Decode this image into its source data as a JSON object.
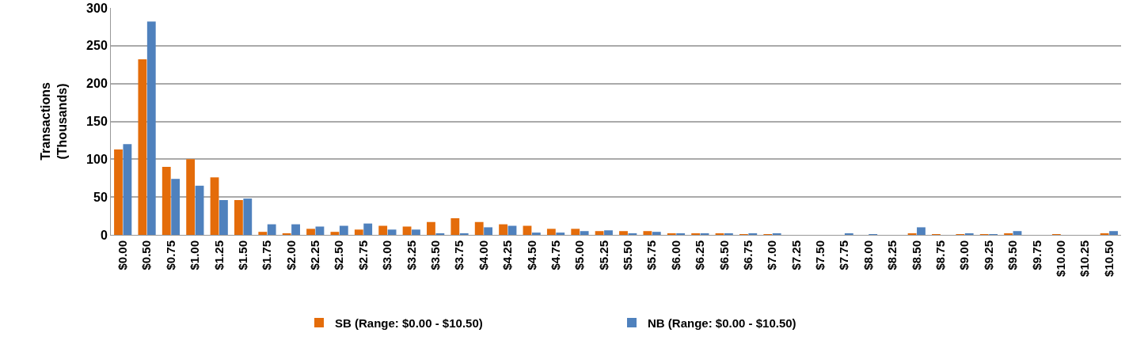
{
  "chart_data": {
    "type": "bar",
    "ylabel": "Transactions\n(Thousands)",
    "categories": [
      "$0.00",
      "$0.50",
      "$0.75",
      "$1.00",
      "$1.25",
      "$1.50",
      "$1.75",
      "$2.00",
      "$2.25",
      "$2.50",
      "$2.75",
      "$3.00",
      "$3.25",
      "$3.50",
      "$3.75",
      "$4.00",
      "$4.25",
      "$4.50",
      "$4.75",
      "$5.00",
      "$5.25",
      "$5.50",
      "$5.75",
      "$6.00",
      "$6.25",
      "$6.50",
      "$6.75",
      "$7.00",
      "$7.25",
      "$7.50",
      "$7.75",
      "$8.00",
      "$8.25",
      "$8.50",
      "$8.75",
      "$9.00",
      "$9.25",
      "$9.50",
      "$9.75",
      "$10.00",
      "$10.25",
      "$10.50"
    ],
    "series": [
      {
        "name": "SB (Range: $0.00 - $10.50)",
        "color": "#e46c0a",
        "values": [
          113,
          232,
          90,
          100,
          76,
          46,
          4,
          2,
          8,
          4,
          7,
          12,
          11,
          17,
          22,
          17,
          14,
          12,
          8,
          8,
          5,
          5,
          5,
          2,
          2,
          2,
          1,
          1,
          0,
          0,
          0,
          0,
          0,
          2,
          1,
          1,
          1,
          2,
          0,
          1,
          0,
          2
        ]
      },
      {
        "name": "NB (Range: $0.00 - $10.50)",
        "color": "#4f81bd",
        "values": [
          120,
          282,
          74,
          65,
          46,
          48,
          14,
          14,
          11,
          12,
          15,
          7,
          7,
          2,
          2,
          10,
          12,
          3,
          3,
          5,
          6,
          2,
          4,
          2,
          2,
          2,
          2,
          2,
          0,
          0,
          2,
          1,
          0,
          10,
          0,
          2,
          1,
          5,
          0,
          0,
          0,
          5
        ]
      }
    ],
    "ylim": [
      0,
      300
    ],
    "yticks": [
      0,
      50,
      100,
      150,
      200,
      250,
      300
    ],
    "grid": "y",
    "legend": "bottom"
  }
}
